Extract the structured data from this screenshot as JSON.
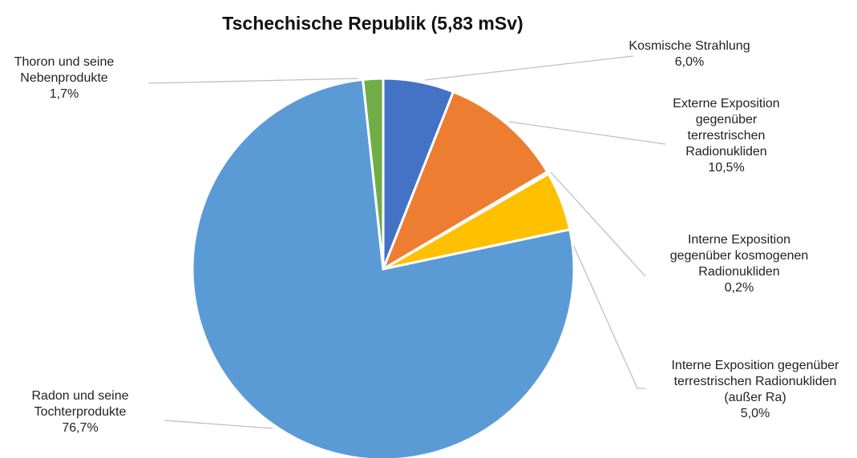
{
  "chart_data": {
    "type": "pie",
    "title": "Tschechische Republik (5,83 mSv)",
    "categories": [
      "Kosmische Strahlung",
      "Externe Exposition gegenüber terrestrischen Radionukliden",
      "Interne Exposition gegenüber kosmogenen Radionukliden",
      "Interne Exposition gegenüber terrestrischen Radionukliden (außer Ra)",
      "Radon und seine Tochterprodukte",
      "Thoron und seine Nebenprodukte"
    ],
    "values": [
      6.0,
      10.5,
      0.2,
      5.0,
      76.7,
      1.7
    ],
    "value_labels": [
      "6,0%",
      "10,5%",
      "0,2%",
      "5,0%",
      "76,7%",
      "1,7%"
    ],
    "colors": [
      "#4472c4",
      "#ed7d31",
      "#a5a5a5",
      "#ffc000",
      "#5b9bd5",
      "#70ad47"
    ]
  }
}
